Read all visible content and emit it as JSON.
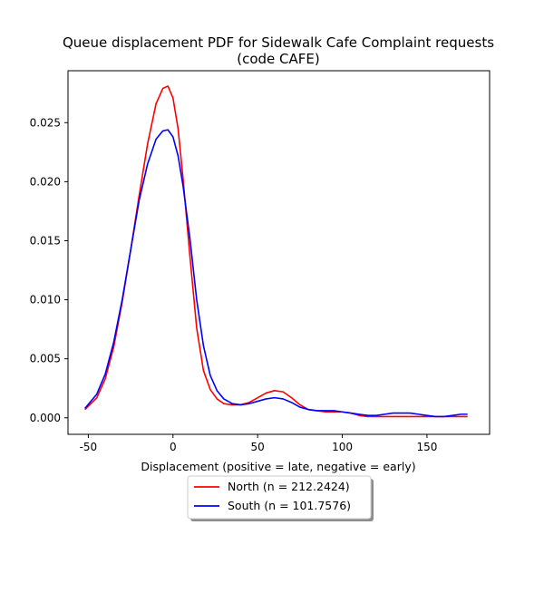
{
  "chart_data": {
    "type": "line",
    "title_line1": "Queue displacement PDF for Sidewalk Cafe Complaint  requests",
    "title_line2": "(code CAFE)",
    "xlabel": "Displacement (positive = late, negative = early)",
    "ylabel": "",
    "xlim": [
      -62,
      187
    ],
    "ylim": [
      -0.0014,
      0.0294
    ],
    "xticks": [
      -50,
      0,
      50,
      100,
      150
    ],
    "yticks": [
      0.0,
      0.005,
      0.01,
      0.015,
      0.02,
      0.025
    ],
    "ytick_labels": [
      "0.000",
      "0.005",
      "0.010",
      "0.015",
      "0.020",
      "0.025"
    ],
    "grid": false,
    "legend_position": "below-center",
    "series": [
      {
        "name": "North (n = 212.2424)",
        "color": "#ff0000",
        "points": [
          [
            -52,
            0.0007
          ],
          [
            -45,
            0.0017
          ],
          [
            -40,
            0.0033
          ],
          [
            -35,
            0.006
          ],
          [
            -30,
            0.0098
          ],
          [
            -25,
            0.0142
          ],
          [
            -20,
            0.0188
          ],
          [
            -15,
            0.0232
          ],
          [
            -10,
            0.0266
          ],
          [
            -6,
            0.0279
          ],
          [
            -3,
            0.0281
          ],
          [
            0,
            0.0271
          ],
          [
            3,
            0.0245
          ],
          [
            6,
            0.0202
          ],
          [
            10,
            0.0137
          ],
          [
            14,
            0.0076
          ],
          [
            18,
            0.004
          ],
          [
            22,
            0.0024
          ],
          [
            26,
            0.0016
          ],
          [
            30,
            0.0012
          ],
          [
            35,
            0.0011
          ],
          [
            40,
            0.0011
          ],
          [
            45,
            0.0013
          ],
          [
            50,
            0.0017
          ],
          [
            55,
            0.0021
          ],
          [
            60,
            0.0023
          ],
          [
            65,
            0.0022
          ],
          [
            70,
            0.0017
          ],
          [
            75,
            0.0011
          ],
          [
            80,
            0.0007
          ],
          [
            85,
            0.0006
          ],
          [
            90,
            0.0005
          ],
          [
            95,
            0.0005
          ],
          [
            100,
            0.0005
          ],
          [
            105,
            0.0004
          ],
          [
            110,
            0.0002
          ],
          [
            115,
            0.0001
          ],
          [
            120,
            0.0001
          ],
          [
            130,
            0.0001
          ],
          [
            140,
            0.0001
          ],
          [
            150,
            0.0001
          ],
          [
            160,
            0.0001
          ],
          [
            174,
            0.0001
          ]
        ]
      },
      {
        "name": "South (n = 101.7576)",
        "color": "#0000ff",
        "points": [
          [
            -52,
            0.0008
          ],
          [
            -45,
            0.002
          ],
          [
            -40,
            0.0037
          ],
          [
            -35,
            0.0064
          ],
          [
            -30,
            0.01
          ],
          [
            -25,
            0.0142
          ],
          [
            -20,
            0.0184
          ],
          [
            -15,
            0.0215
          ],
          [
            -10,
            0.0236
          ],
          [
            -6,
            0.0243
          ],
          [
            -3,
            0.0244
          ],
          [
            0,
            0.0238
          ],
          [
            3,
            0.0222
          ],
          [
            6,
            0.0196
          ],
          [
            10,
            0.0152
          ],
          [
            14,
            0.01
          ],
          [
            18,
            0.0061
          ],
          [
            22,
            0.0036
          ],
          [
            26,
            0.0023
          ],
          [
            30,
            0.0016
          ],
          [
            35,
            0.0012
          ],
          [
            40,
            0.0011
          ],
          [
            45,
            0.0012
          ],
          [
            50,
            0.0014
          ],
          [
            55,
            0.0016
          ],
          [
            60,
            0.0017
          ],
          [
            65,
            0.0016
          ],
          [
            70,
            0.0013
          ],
          [
            75,
            0.0009
          ],
          [
            80,
            0.0007
          ],
          [
            85,
            0.0006
          ],
          [
            90,
            0.0006
          ],
          [
            95,
            0.0006
          ],
          [
            100,
            0.0005
          ],
          [
            105,
            0.0004
          ],
          [
            110,
            0.0003
          ],
          [
            115,
            0.0002
          ],
          [
            120,
            0.0002
          ],
          [
            125,
            0.0003
          ],
          [
            130,
            0.0004
          ],
          [
            135,
            0.0004
          ],
          [
            140,
            0.0004
          ],
          [
            145,
            0.0003
          ],
          [
            150,
            0.0002
          ],
          [
            155,
            0.0001
          ],
          [
            160,
            0.0001
          ],
          [
            165,
            0.0002
          ],
          [
            170,
            0.0003
          ],
          [
            174,
            0.0003
          ]
        ]
      }
    ]
  }
}
